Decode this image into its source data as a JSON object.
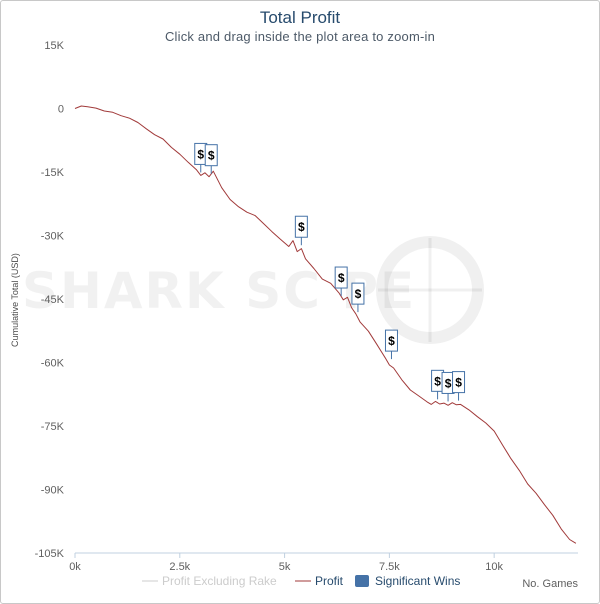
{
  "chart_data": {
    "type": "line",
    "title": "Total Profit",
    "subtitle": "Click and drag inside the plot area to zoom-in",
    "ylabel": "Cumulative Total (USD)",
    "xlabel": "No. Games",
    "xlim": [
      0,
      12000
    ],
    "ylim": [
      -105000,
      15000
    ],
    "x_ticks": [
      "0k",
      "2.5k",
      "5k",
      "7.5k",
      "10k"
    ],
    "x_tick_values": [
      0,
      2500,
      5000,
      7500,
      10000
    ],
    "y_ticks": [
      "15K",
      "0",
      "-15K",
      "-30K",
      "-45K",
      "-60K",
      "-75K",
      "-90K",
      "-105K"
    ],
    "y_tick_values": [
      15000,
      0,
      -15000,
      -30000,
      -45000,
      -60000,
      -75000,
      -90000,
      -105000
    ],
    "grid": false,
    "legend": [
      "Profit Excluding Rake",
      "Profit",
      "Significant Wins"
    ],
    "legend_placement": "bottom",
    "colors": {
      "profit": "#a13a3a",
      "profit_excl_rake": "#cccccc",
      "significant_wins": "#4572a7"
    },
    "series": [
      {
        "name": "Profit",
        "x": [
          0,
          150,
          300,
          500,
          700,
          900,
          1100,
          1300,
          1500,
          1700,
          1900,
          2100,
          2300,
          2500,
          2700,
          2900,
          3000,
          3100,
          3200,
          3300,
          3500,
          3700,
          3900,
          4100,
          4300,
          4500,
          4700,
          4900,
          5100,
          5200,
          5300,
          5400,
          5500,
          5700,
          5900,
          6100,
          6300,
          6400,
          6500,
          6600,
          6700,
          6800,
          7000,
          7200,
          7400,
          7500,
          7600,
          7800,
          8000,
          8200,
          8400,
          8500,
          8600,
          8700,
          8800,
          8900,
          9000,
          9100,
          9200,
          9400,
          9600,
          9800,
          10000,
          10200,
          10400,
          10600,
          10800,
          11000,
          11200,
          11400,
          11600,
          11800,
          11950
        ],
        "y": [
          0,
          600,
          400,
          100,
          -600,
          -900,
          -1700,
          -2300,
          -3300,
          -4800,
          -6200,
          -7200,
          -9200,
          -10800,
          -12700,
          -14500,
          -15800,
          -15200,
          -16100,
          -14800,
          -18700,
          -21500,
          -23200,
          -24500,
          -25300,
          -27200,
          -29100,
          -30900,
          -32600,
          -31200,
          -33800,
          -33100,
          -35500,
          -37800,
          -40300,
          -41300,
          -43600,
          -45200,
          -44600,
          -47100,
          -48500,
          -50400,
          -52600,
          -55700,
          -58900,
          -60600,
          -61300,
          -64100,
          -66500,
          -67900,
          -69300,
          -69900,
          -69200,
          -69800,
          -69600,
          -70100,
          -69500,
          -70000,
          -69900,
          -71200,
          -72800,
          -74300,
          -76200,
          -79500,
          -82700,
          -85500,
          -88700,
          -90900,
          -93600,
          -96100,
          -99300,
          -101800,
          -102700
        ]
      },
      {
        "name": "Profit Excluding Rake",
        "x": [],
        "y": []
      }
    ],
    "significant_wins": [
      {
        "x": 3000,
        "y": -15100,
        "label": "$"
      },
      {
        "x": 3250,
        "y": -15400,
        "label": "$"
      },
      {
        "x": 5400,
        "y": -32300,
        "label": "$"
      },
      {
        "x": 6350,
        "y": -44300,
        "label": "$"
      },
      {
        "x": 6750,
        "y": -48100,
        "label": "$"
      },
      {
        "x": 7550,
        "y": -59200,
        "label": "$"
      },
      {
        "x": 8650,
        "y": -68700,
        "label": "$"
      },
      {
        "x": 8900,
        "y": -69200,
        "label": "$"
      },
      {
        "x": 9150,
        "y": -69000,
        "label": "$"
      }
    ]
  },
  "watermark": {
    "text": "SHARK SC  PE"
  }
}
